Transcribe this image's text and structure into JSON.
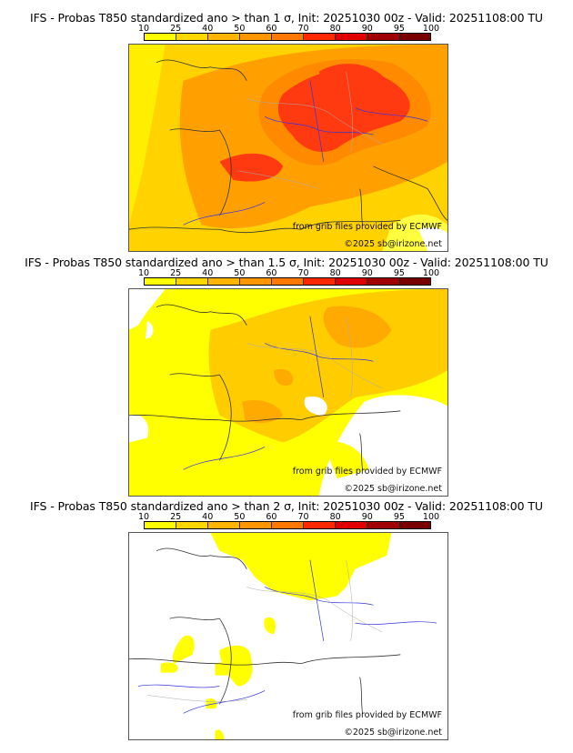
{
  "colorbar": {
    "ticks": [
      "10",
      "25",
      "40",
      "50",
      "60",
      "70",
      "80",
      "90",
      "95",
      "100"
    ],
    "colors": [
      "#ffff00",
      "#ffd700",
      "#ffb400",
      "#ff9600",
      "#ff7800",
      "#ff2800",
      "#e10000",
      "#a00000",
      "#780000"
    ]
  },
  "panels": [
    {
      "title": "IFS - Probas T850  standardized ano > than 1 σ, Init: 20251030 00z - Valid: 20251108:00 TU",
      "threshold": "1 σ",
      "source_credit": "from grib files provided by ECMWF",
      "copyright": "©2025 sb@irizone.net"
    },
    {
      "title": "IFS - Probas T850  standardized ano > than 1.5 σ, Init: 20251030 00z - Valid: 20251108:00 TU",
      "threshold": "1.5 σ",
      "source_credit": "from grib files provided by ECMWF",
      "copyright": "©2025 sb@irizone.net"
    },
    {
      "title": "IFS - Probas T850  standardized ano > than 2 σ, Init: 20251030 00z - Valid: 20251108:00 TU",
      "threshold": "2 σ",
      "source_credit": "from grib files provided by ECMWF",
      "copyright": "©2025 sb@irizone.net"
    }
  ]
}
